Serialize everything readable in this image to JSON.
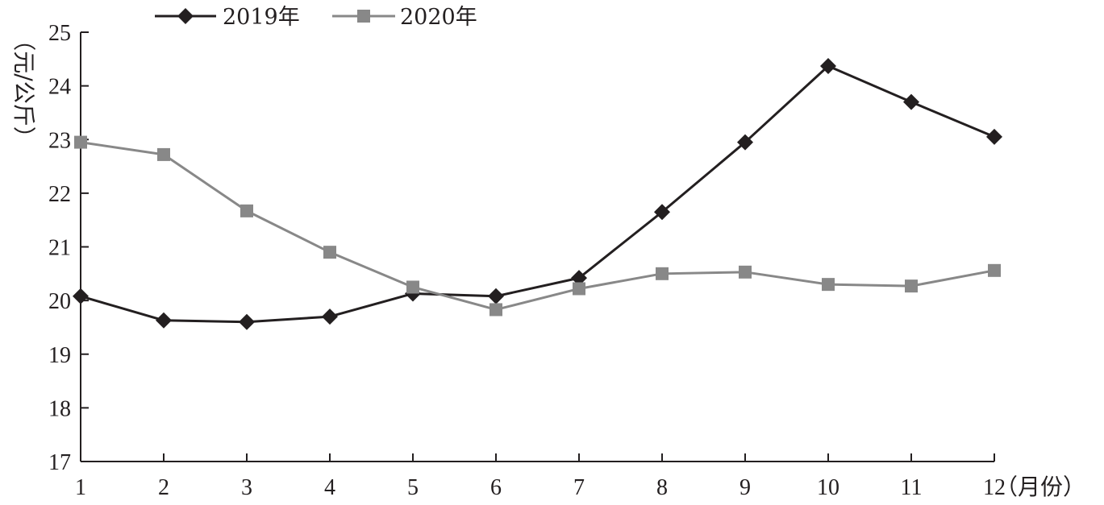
{
  "chart_data": {
    "type": "line",
    "title": "",
    "xlabel": "（月份）",
    "ylabel": "（元/公斤）",
    "x": [
      "1",
      "2",
      "3",
      "4",
      "5",
      "6",
      "7",
      "8",
      "9",
      "10",
      "11",
      "12"
    ],
    "ylim": [
      17,
      25
    ],
    "yticks": [
      "17",
      "18",
      "19",
      "20",
      "21",
      "22",
      "23",
      "24",
      "25"
    ],
    "grid": false,
    "legend_position": "top-left",
    "series": [
      {
        "name": "2019年",
        "color": "#231f20",
        "marker": "diamond",
        "values": [
          20.08,
          19.63,
          19.6,
          19.7,
          20.13,
          20.08,
          20.42,
          21.65,
          22.95,
          24.37,
          23.7,
          23.05
        ]
      },
      {
        "name": "2020年",
        "color": "#888888",
        "marker": "square",
        "values": [
          22.95,
          22.72,
          21.67,
          20.9,
          20.25,
          19.83,
          20.22,
          20.5,
          20.53,
          20.3,
          20.27,
          20.56
        ]
      }
    ]
  }
}
